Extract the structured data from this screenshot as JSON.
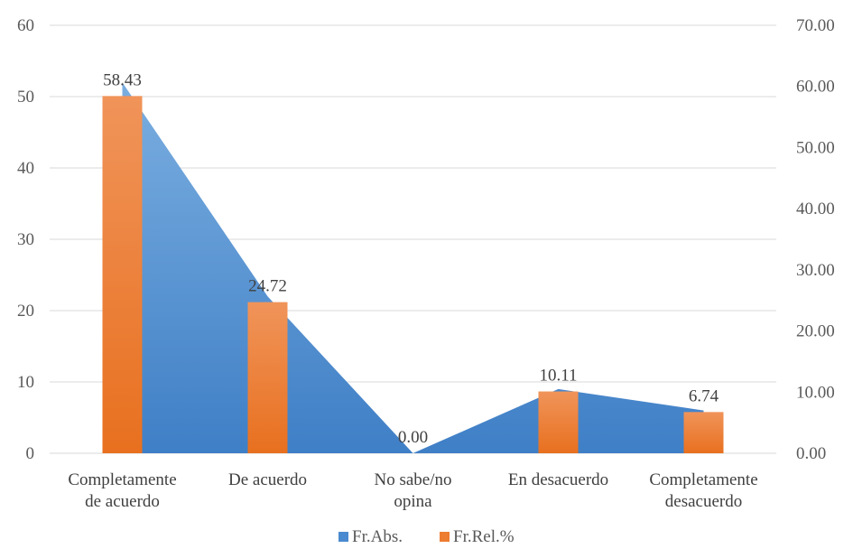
{
  "chart_data": {
    "type": "bar",
    "categories": [
      [
        "Completamente",
        "de acuerdo"
      ],
      [
        "De acuerdo"
      ],
      [
        "No sabe/no",
        "opina"
      ],
      [
        "En desacuerdo"
      ],
      [
        "Completamente",
        "desacuerdo"
      ]
    ],
    "series": [
      {
        "name": "Fr.Abs.",
        "kind": "area",
        "axis": "left",
        "color": "#4a8ad0",
        "values": [
          52,
          22,
          0,
          9,
          6
        ]
      },
      {
        "name": "Fr.Rel.%",
        "kind": "bar",
        "axis": "right",
        "color": "#ed7d31",
        "values": [
          58.43,
          24.72,
          0.0,
          10.11,
          6.74
        ],
        "data_labels": [
          "58.43",
          "24.72",
          "0.00",
          "10.11",
          "6.74"
        ]
      }
    ],
    "left_axis": {
      "min": 0,
      "max": 60,
      "ticks": [
        "0",
        "10",
        "20",
        "30",
        "40",
        "50",
        "60"
      ]
    },
    "right_axis": {
      "min": 0,
      "max": 70,
      "ticks": [
        "0.00",
        "10.00",
        "20.00",
        "30.00",
        "40.00",
        "50.00",
        "60.00",
        "70.00"
      ]
    },
    "grid": true,
    "legend_position": "bottom"
  }
}
